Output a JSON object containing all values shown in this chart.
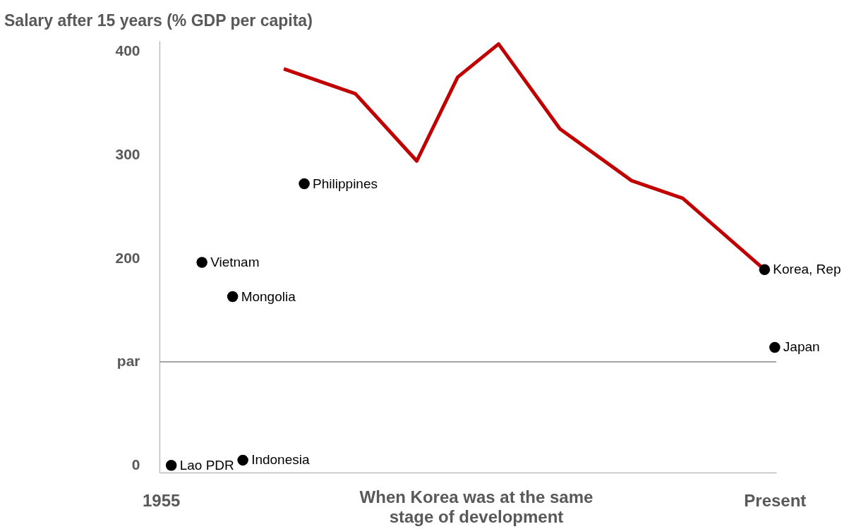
{
  "chart_data": {
    "type": "scatter",
    "ylabel": "Salary after 15 years (% GDP per capita)",
    "xlabel": "When Korea was at the same stage of development",
    "ylim": [
      -7,
      410
    ],
    "categories": [
      "1955",
      null,
      null,
      null,
      null,
      null,
      null,
      null,
      null,
      null,
      null,
      null,
      null,
      null,
      null,
      null,
      null,
      null,
      null,
      null,
      null,
      null,
      null,
      null,
      null,
      null,
      null,
      null,
      null,
      null,
      null,
      null,
      null,
      null,
      null,
      null,
      null,
      null,
      null,
      null,
      null,
      null,
      null,
      null,
      null,
      null,
      null,
      null,
      null,
      null,
      null,
      null,
      null,
      null,
      null,
      null,
      null,
      null,
      null,
      null,
      "Present"
    ],
    "yticks": [
      0,
      {
        "value": 100,
        "label": "par"
      },
      200,
      300,
      400
    ],
    "series": [
      {
        "type": "line",
        "color": "#c00000",
        "marker": "none",
        "values": [
          null,
          null,
          null,
          null,
          null,
          null,
          null,
          null,
          null,
          null,
          null,
          null,
          383,
          null,
          null,
          null,
          null,
          null,
          null,
          359,
          null,
          null,
          null,
          null,
          null,
          294,
          null,
          null,
          null,
          375,
          null,
          null,
          null,
          407,
          null,
          null,
          null,
          null,
          null,
          325,
          null,
          null,
          null,
          null,
          null,
          null,
          275,
          null,
          null,
          null,
          null,
          258,
          null,
          null,
          null,
          null,
          null,
          null,
          null,
          189,
          null
        ]
      },
      {
        "color": "#000000",
        "marker": "circle",
        "values": [
          null,
          0,
          null,
          null,
          196,
          null,
          null,
          163,
          5,
          null,
          null,
          null,
          null,
          null,
          272,
          null,
          null,
          null,
          null,
          null,
          null,
          null,
          null,
          null,
          null,
          null,
          null,
          null,
          null,
          null,
          null,
          null,
          null,
          null,
          null,
          null,
          null,
          null,
          null,
          null,
          null,
          null,
          null,
          null,
          null,
          null,
          null,
          null,
          null,
          null,
          null,
          null,
          null,
          null,
          null,
          null,
          null,
          null,
          null,
          189,
          114
        ]
      }
    ],
    "annotations": [
      "Lao PDR",
      "Vietnam",
      "Mongolia",
      "Indonesia",
      "Philippines",
      "Korea, Rep",
      "Japan"
    ],
    "ref_lines": [
      {
        "axis": "y",
        "value": 100,
        "color": "#a6a6a6"
      }
    ],
    "grid": false
  }
}
